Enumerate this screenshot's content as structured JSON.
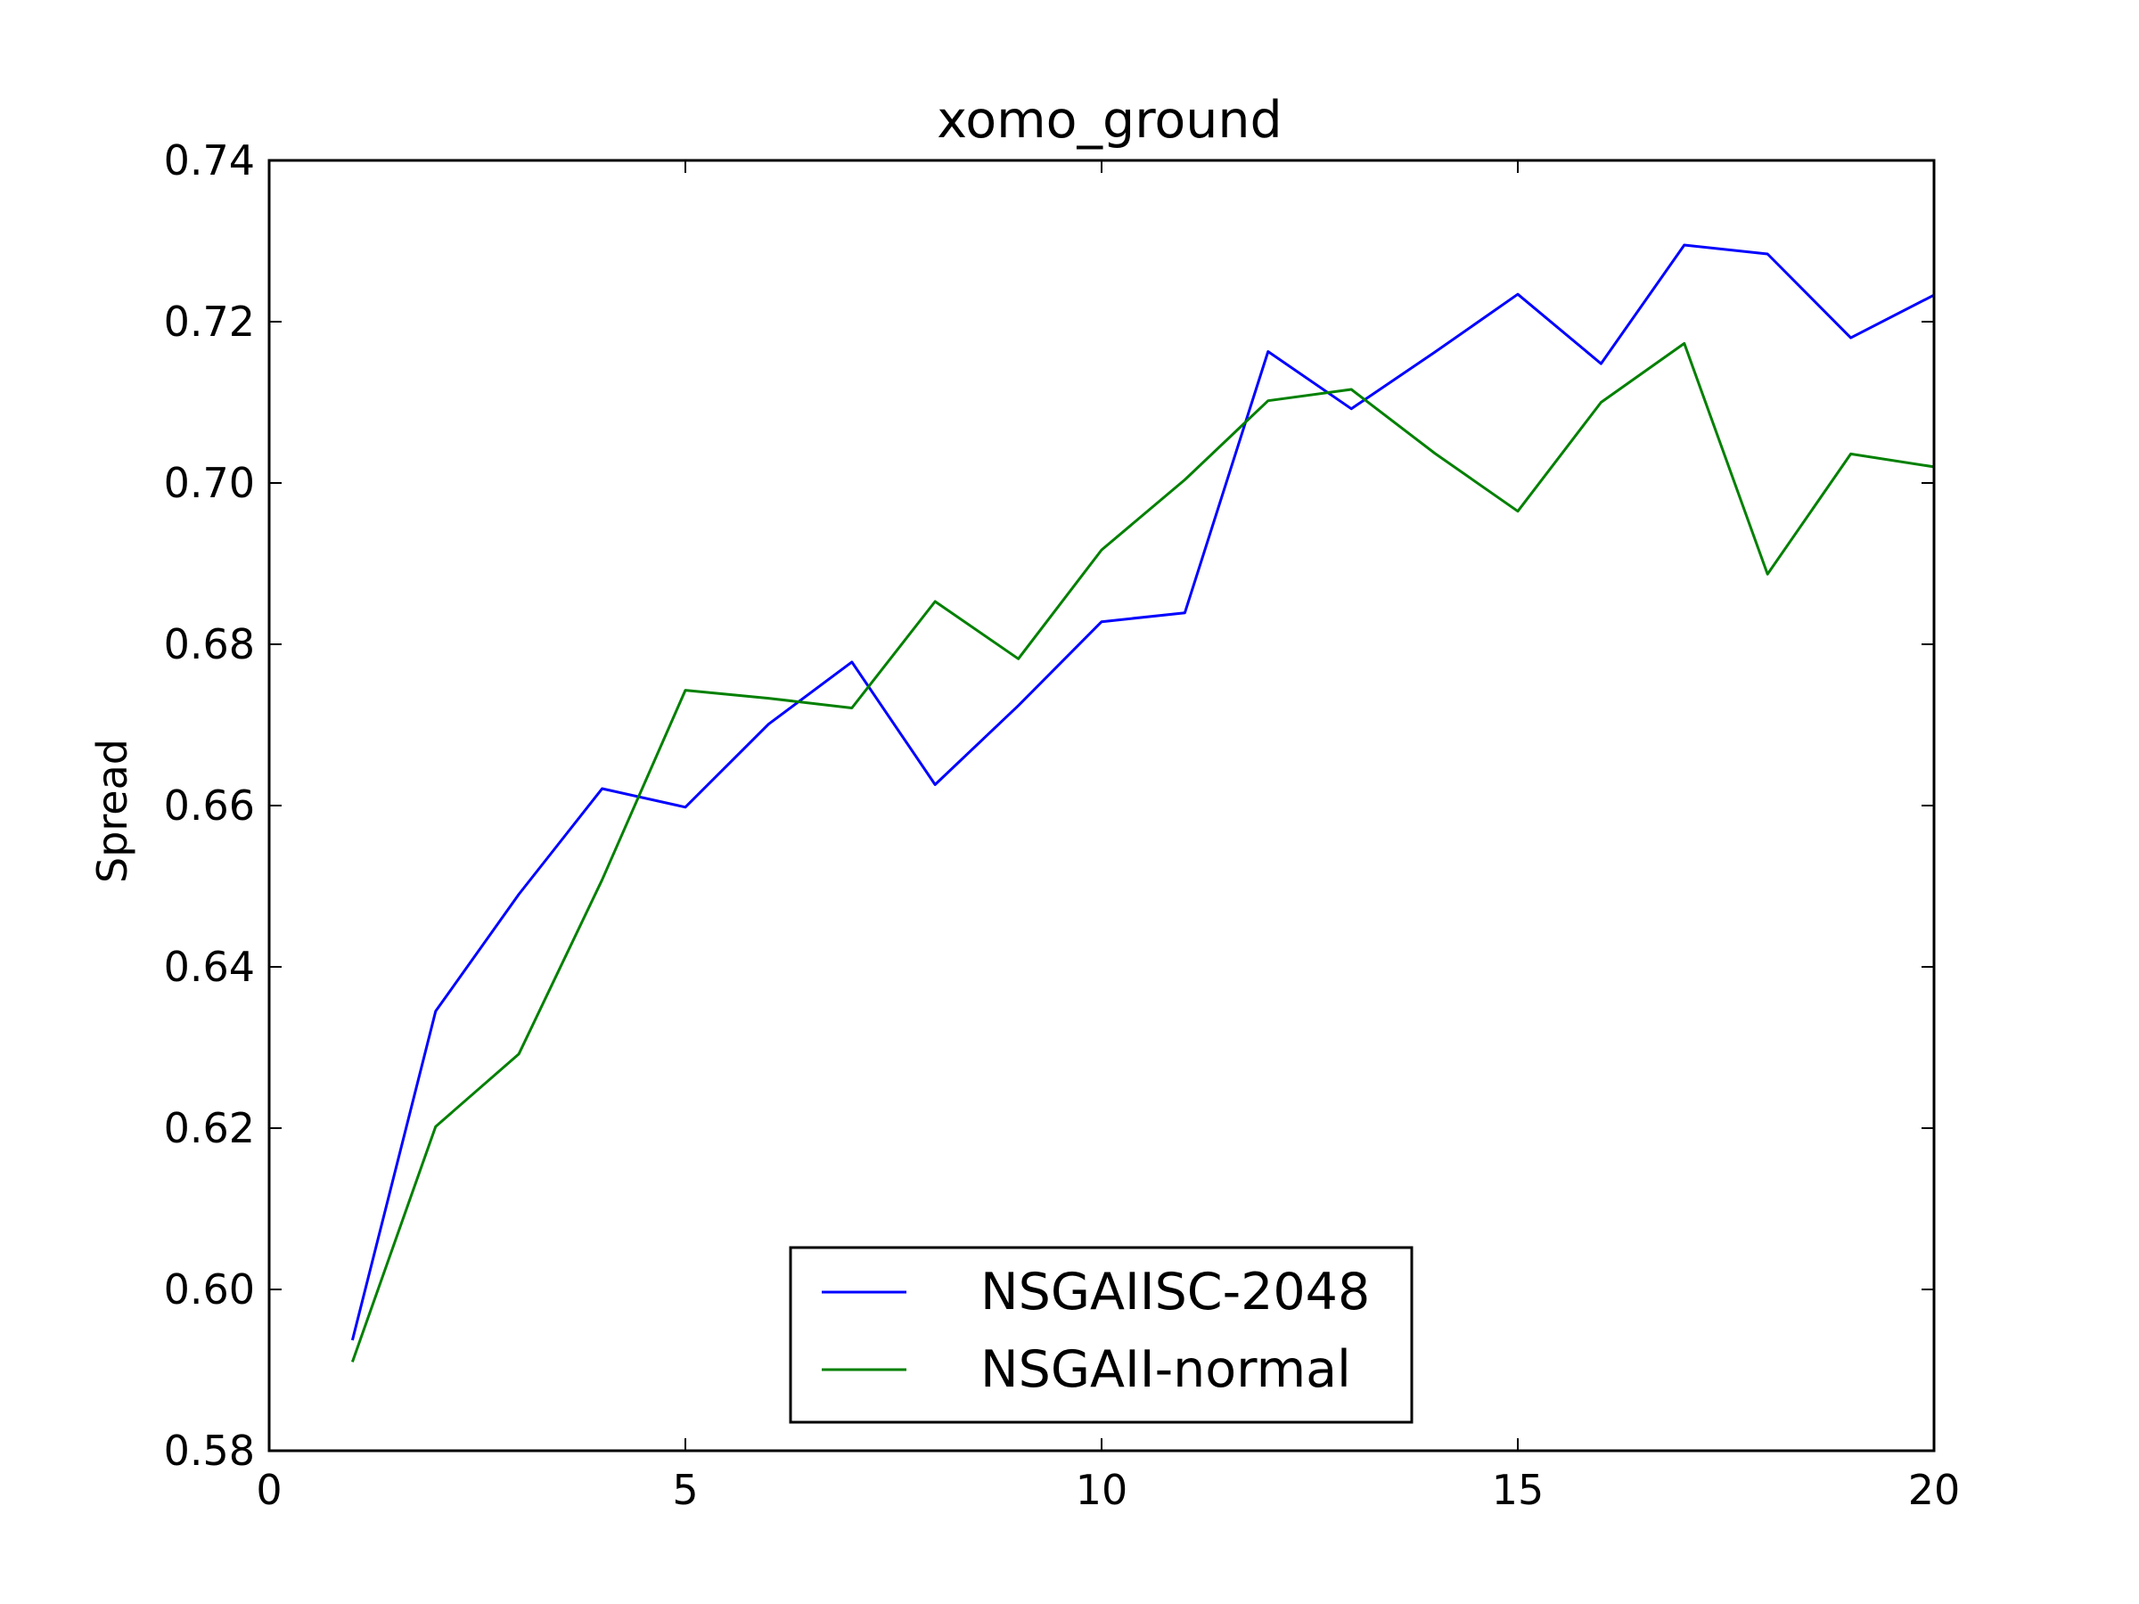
{
  "chart_data": {
    "type": "line",
    "title": "xomo_ground",
    "xlabel": "",
    "ylabel": "Spread",
    "xlim": [
      0,
      20
    ],
    "ylim": [
      0.58,
      0.74
    ],
    "xticks": [
      0,
      5,
      10,
      15,
      20
    ],
    "yticks": [
      0.58,
      0.6,
      0.62,
      0.64,
      0.66,
      0.68,
      0.7,
      0.72,
      0.74
    ],
    "xtick_labels": [
      "0",
      "5",
      "10",
      "15",
      "20"
    ],
    "ytick_labels": [
      "0.58",
      "0.60",
      "0.62",
      "0.64",
      "0.66",
      "0.68",
      "0.70",
      "0.72",
      "0.74"
    ],
    "grid": false,
    "legend_position": "lower-center",
    "x": [
      1,
      2,
      3,
      4,
      5,
      6,
      7,
      8,
      9,
      10,
      11,
      12,
      13,
      14,
      15,
      16,
      17,
      18,
      19,
      20
    ],
    "series": [
      {
        "name": "NSGAIISC-2048",
        "color": "#0000ff",
        "values": [
          0.5937,
          0.6345,
          0.649,
          0.6621,
          0.6598,
          0.6701,
          0.6778,
          0.6626,
          0.6724,
          0.6828,
          0.6839,
          0.7163,
          0.7092,
          0.7162,
          0.7234,
          0.7148,
          0.7295,
          0.7284,
          0.718,
          0.7233
        ]
      },
      {
        "name": "NSGAII-normal",
        "color": "#008000",
        "values": [
          0.591,
          0.6202,
          0.6292,
          0.6508,
          0.6743,
          0.6733,
          0.6721,
          0.6853,
          0.6782,
          0.6917,
          0.7004,
          0.7102,
          0.7116,
          0.7037,
          0.6965,
          0.71,
          0.7173,
          0.6887,
          0.7036,
          0.702
        ]
      }
    ]
  }
}
